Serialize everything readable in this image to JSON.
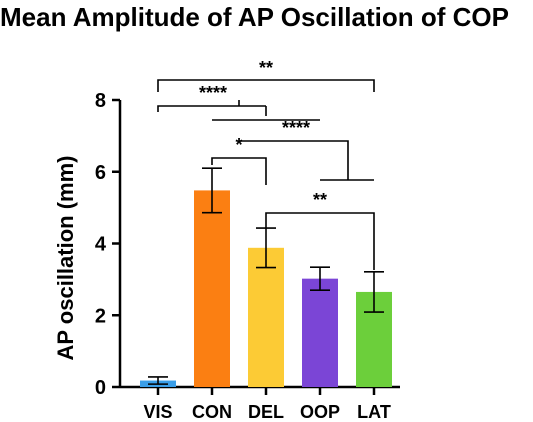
{
  "chart_data": {
    "type": "bar",
    "title": "Mean Amplitude of AP Oscillation of COP",
    "xlabel": "",
    "ylabel": "AP oscillation (mm)",
    "ylim": [
      0,
      8
    ],
    "yticks": [
      0,
      2,
      4,
      6,
      8
    ],
    "categories": [
      "VIS",
      "CON",
      "DEL",
      "OOP",
      "LAT"
    ],
    "values": [
      0.18,
      5.48,
      3.88,
      3.02,
      2.65
    ],
    "error": [
      0.1,
      0.62,
      0.55,
      0.32,
      0.56
    ],
    "colors": [
      "#3a9ee8",
      "#fb7f12",
      "#fccb35",
      "#7b45d6",
      "#6ccf3b"
    ],
    "grid": false,
    "legend": "none",
    "significance": [
      {
        "label": "**",
        "from": "VIS",
        "to": "LAT"
      },
      {
        "label": "****",
        "from": "VIS",
        "to": "CON/DEL"
      },
      {
        "label": "****",
        "from": "CON/DEL",
        "to": "OOP/LAT"
      },
      {
        "label": "*",
        "from": "CON",
        "to": "DEL"
      },
      {
        "label": "**",
        "from": "DEL",
        "to": "LAT"
      }
    ]
  }
}
